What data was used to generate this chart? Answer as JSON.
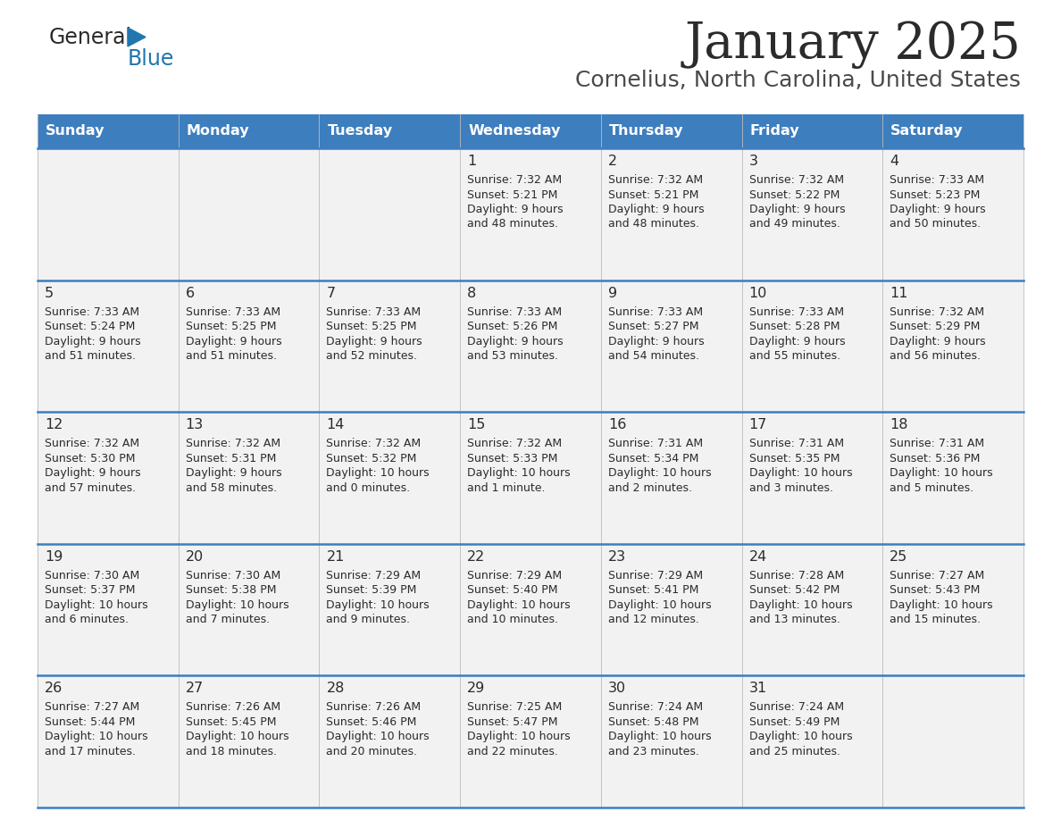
{
  "title": "January 2025",
  "subtitle": "Cornelius, North Carolina, United States",
  "header_bg": "#3d7ebf",
  "header_text_color": "#ffffff",
  "cell_bg": "#f2f2f2",
  "day_headers": [
    "Sunday",
    "Monday",
    "Tuesday",
    "Wednesday",
    "Thursday",
    "Friday",
    "Saturday"
  ],
  "weeks": [
    [
      {
        "day": "",
        "sunrise": "",
        "sunset": "",
        "daylight": ""
      },
      {
        "day": "",
        "sunrise": "",
        "sunset": "",
        "daylight": ""
      },
      {
        "day": "",
        "sunrise": "",
        "sunset": "",
        "daylight": ""
      },
      {
        "day": "1",
        "sunrise": "7:32 AM",
        "sunset": "5:21 PM",
        "daylight_h": "9 hours",
        "daylight_m": "48 minutes."
      },
      {
        "day": "2",
        "sunrise": "7:32 AM",
        "sunset": "5:21 PM",
        "daylight_h": "9 hours",
        "daylight_m": "48 minutes."
      },
      {
        "day": "3",
        "sunrise": "7:32 AM",
        "sunset": "5:22 PM",
        "daylight_h": "9 hours",
        "daylight_m": "49 minutes."
      },
      {
        "day": "4",
        "sunrise": "7:33 AM",
        "sunset": "5:23 PM",
        "daylight_h": "9 hours",
        "daylight_m": "50 minutes."
      }
    ],
    [
      {
        "day": "5",
        "sunrise": "7:33 AM",
        "sunset": "5:24 PM",
        "daylight_h": "9 hours",
        "daylight_m": "51 minutes."
      },
      {
        "day": "6",
        "sunrise": "7:33 AM",
        "sunset": "5:25 PM",
        "daylight_h": "9 hours",
        "daylight_m": "51 minutes."
      },
      {
        "day": "7",
        "sunrise": "7:33 AM",
        "sunset": "5:25 PM",
        "daylight_h": "9 hours",
        "daylight_m": "52 minutes."
      },
      {
        "day": "8",
        "sunrise": "7:33 AM",
        "sunset": "5:26 PM",
        "daylight_h": "9 hours",
        "daylight_m": "53 minutes."
      },
      {
        "day": "9",
        "sunrise": "7:33 AM",
        "sunset": "5:27 PM",
        "daylight_h": "9 hours",
        "daylight_m": "54 minutes."
      },
      {
        "day": "10",
        "sunrise": "7:33 AM",
        "sunset": "5:28 PM",
        "daylight_h": "9 hours",
        "daylight_m": "55 minutes."
      },
      {
        "day": "11",
        "sunrise": "7:32 AM",
        "sunset": "5:29 PM",
        "daylight_h": "9 hours",
        "daylight_m": "56 minutes."
      }
    ],
    [
      {
        "day": "12",
        "sunrise": "7:32 AM",
        "sunset": "5:30 PM",
        "daylight_h": "9 hours",
        "daylight_m": "57 minutes."
      },
      {
        "day": "13",
        "sunrise": "7:32 AM",
        "sunset": "5:31 PM",
        "daylight_h": "9 hours",
        "daylight_m": "58 minutes."
      },
      {
        "day": "14",
        "sunrise": "7:32 AM",
        "sunset": "5:32 PM",
        "daylight_h": "10 hours",
        "daylight_m": "0 minutes."
      },
      {
        "day": "15",
        "sunrise": "7:32 AM",
        "sunset": "5:33 PM",
        "daylight_h": "10 hours",
        "daylight_m": "1 minute."
      },
      {
        "day": "16",
        "sunrise": "7:31 AM",
        "sunset": "5:34 PM",
        "daylight_h": "10 hours",
        "daylight_m": "2 minutes."
      },
      {
        "day": "17",
        "sunrise": "7:31 AM",
        "sunset": "5:35 PM",
        "daylight_h": "10 hours",
        "daylight_m": "3 minutes."
      },
      {
        "day": "18",
        "sunrise": "7:31 AM",
        "sunset": "5:36 PM",
        "daylight_h": "10 hours",
        "daylight_m": "5 minutes."
      }
    ],
    [
      {
        "day": "19",
        "sunrise": "7:30 AM",
        "sunset": "5:37 PM",
        "daylight_h": "10 hours",
        "daylight_m": "6 minutes."
      },
      {
        "day": "20",
        "sunrise": "7:30 AM",
        "sunset": "5:38 PM",
        "daylight_h": "10 hours",
        "daylight_m": "7 minutes."
      },
      {
        "day": "21",
        "sunrise": "7:29 AM",
        "sunset": "5:39 PM",
        "daylight_h": "10 hours",
        "daylight_m": "9 minutes."
      },
      {
        "day": "22",
        "sunrise": "7:29 AM",
        "sunset": "5:40 PM",
        "daylight_h": "10 hours",
        "daylight_m": "10 minutes."
      },
      {
        "day": "23",
        "sunrise": "7:29 AM",
        "sunset": "5:41 PM",
        "daylight_h": "10 hours",
        "daylight_m": "12 minutes."
      },
      {
        "day": "24",
        "sunrise": "7:28 AM",
        "sunset": "5:42 PM",
        "daylight_h": "10 hours",
        "daylight_m": "13 minutes."
      },
      {
        "day": "25",
        "sunrise": "7:27 AM",
        "sunset": "5:43 PM",
        "daylight_h": "10 hours",
        "daylight_m": "15 minutes."
      }
    ],
    [
      {
        "day": "26",
        "sunrise": "7:27 AM",
        "sunset": "5:44 PM",
        "daylight_h": "10 hours",
        "daylight_m": "17 minutes."
      },
      {
        "day": "27",
        "sunrise": "7:26 AM",
        "sunset": "5:45 PM",
        "daylight_h": "10 hours",
        "daylight_m": "18 minutes."
      },
      {
        "day": "28",
        "sunrise": "7:26 AM",
        "sunset": "5:46 PM",
        "daylight_h": "10 hours",
        "daylight_m": "20 minutes."
      },
      {
        "day": "29",
        "sunrise": "7:25 AM",
        "sunset": "5:47 PM",
        "daylight_h": "10 hours",
        "daylight_m": "22 minutes."
      },
      {
        "day": "30",
        "sunrise": "7:24 AM",
        "sunset": "5:48 PM",
        "daylight_h": "10 hours",
        "daylight_m": "23 minutes."
      },
      {
        "day": "31",
        "sunrise": "7:24 AM",
        "sunset": "5:49 PM",
        "daylight_h": "10 hours",
        "daylight_m": "25 minutes."
      },
      {
        "day": "",
        "sunrise": "",
        "sunset": "",
        "daylight_h": "",
        "daylight_m": ""
      }
    ]
  ],
  "logo_color_general": "#2b2b2b",
  "logo_color_blue": "#2176ae",
  "title_color": "#2b2b2b",
  "subtitle_color": "#4a4a4a",
  "cell_text_color": "#2b2b2b",
  "divider_color": "#3d7ebf",
  "bg_color": "#ffffff"
}
